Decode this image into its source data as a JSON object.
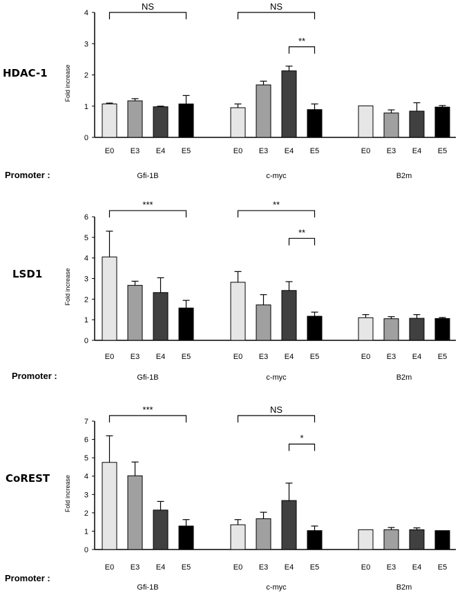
{
  "figure": {
    "promoter_label": "Promoter :",
    "x_tick_labels": [
      "E0",
      "E3",
      "E4",
      "E5"
    ],
    "promoters": [
      "Gfi-1B",
      "c-myc",
      "B2m"
    ],
    "ylabel": "Fold increase",
    "colors": {
      "E0": "#e6e6e6",
      "E3": "#a0a0a0",
      "E4": "#404040",
      "E5": "#000000"
    }
  },
  "chart_data": [
    {
      "type": "bar",
      "title": "HDAC-1",
      "ylabel": "Fold increase",
      "ylim": [
        0,
        4
      ],
      "yticks": [
        0,
        1,
        2,
        3,
        4
      ],
      "groups": [
        "Gfi-1B",
        "c-myc",
        "B2m"
      ],
      "categories": [
        "E0",
        "E3",
        "E4",
        "E5"
      ],
      "series": [
        {
          "group": "Gfi-1B",
          "values": [
            1.07,
            1.17,
            0.98,
            1.07
          ],
          "errors": [
            0.03,
            0.07,
            0.02,
            0.27
          ]
        },
        {
          "group": "c-myc",
          "values": [
            0.95,
            1.68,
            2.13,
            0.89
          ],
          "errors": [
            0.12,
            0.12,
            0.15,
            0.18
          ]
        },
        {
          "group": "B2m",
          "values": [
            1.01,
            0.78,
            0.84,
            0.97
          ],
          "errors": [
            0.0,
            0.1,
            0.27,
            0.05
          ]
        }
      ],
      "significance": [
        {
          "group": "Gfi-1B",
          "from": "E0",
          "to": "E5",
          "label": "NS",
          "level": 4.0
        },
        {
          "group": "c-myc",
          "from": "E0",
          "to": "E5",
          "label": "NS",
          "level": 4.0
        },
        {
          "group": "c-myc",
          "from": "E4",
          "to": "E5",
          "label": "**",
          "level": 2.9
        }
      ]
    },
    {
      "type": "bar",
      "title": "LSD1",
      "ylabel": "Fold increase",
      "ylim": [
        0,
        6
      ],
      "yticks": [
        0,
        1,
        2,
        3,
        4,
        5,
        6
      ],
      "groups": [
        "Gfi-1B",
        "c-myc",
        "B2m"
      ],
      "categories": [
        "E0",
        "E3",
        "E4",
        "E5"
      ],
      "series": [
        {
          "group": "Gfi-1B",
          "values": [
            4.05,
            2.67,
            2.32,
            1.57
          ],
          "errors": [
            1.25,
            0.2,
            0.72,
            0.37
          ]
        },
        {
          "group": "c-myc",
          "values": [
            2.82,
            1.72,
            2.42,
            1.17
          ],
          "errors": [
            0.52,
            0.5,
            0.43,
            0.2
          ]
        },
        {
          "group": "B2m",
          "values": [
            1.1,
            1.05,
            1.07,
            1.06
          ],
          "errors": [
            0.15,
            0.1,
            0.18,
            0.05
          ]
        }
      ],
      "significance": [
        {
          "group": "Gfi-1B",
          "from": "E0",
          "to": "E5",
          "label": "***",
          "level": 6.3
        },
        {
          "group": "c-myc",
          "from": "E0",
          "to": "E5",
          "label": "**",
          "level": 6.3
        },
        {
          "group": "c-myc",
          "from": "E4",
          "to": "E5",
          "label": "**",
          "level": 4.95
        }
      ]
    },
    {
      "type": "bar",
      "title": "CoREST",
      "ylabel": "Fold increase",
      "ylim": [
        0,
        7
      ],
      "yticks": [
        0,
        1,
        2,
        3,
        4,
        5,
        6,
        7
      ],
      "groups": [
        "Gfi-1B",
        "c-myc",
        "B2m"
      ],
      "categories": [
        "E0",
        "E3",
        "E4",
        "E5"
      ],
      "series": [
        {
          "group": "Gfi-1B",
          "values": [
            4.75,
            4.02,
            2.15,
            1.28
          ],
          "errors": [
            1.45,
            0.75,
            0.47,
            0.35
          ]
        },
        {
          "group": "c-myc",
          "values": [
            1.35,
            1.68,
            2.67,
            1.03
          ],
          "errors": [
            0.28,
            0.35,
            0.95,
            0.25
          ]
        },
        {
          "group": "B2m",
          "values": [
            1.08,
            1.08,
            1.08,
            1.03
          ],
          "errors": [
            0.0,
            0.12,
            0.1,
            0.0
          ]
        }
      ],
      "significance": [
        {
          "group": "Gfi-1B",
          "from": "E0",
          "to": "E5",
          "label": "***",
          "level": 7.3
        },
        {
          "group": "c-myc",
          "from": "E0",
          "to": "E5",
          "label": "NS",
          "level": 7.3
        },
        {
          "group": "c-myc",
          "from": "E4",
          "to": "E5",
          "label": "*",
          "level": 5.75
        }
      ]
    }
  ]
}
